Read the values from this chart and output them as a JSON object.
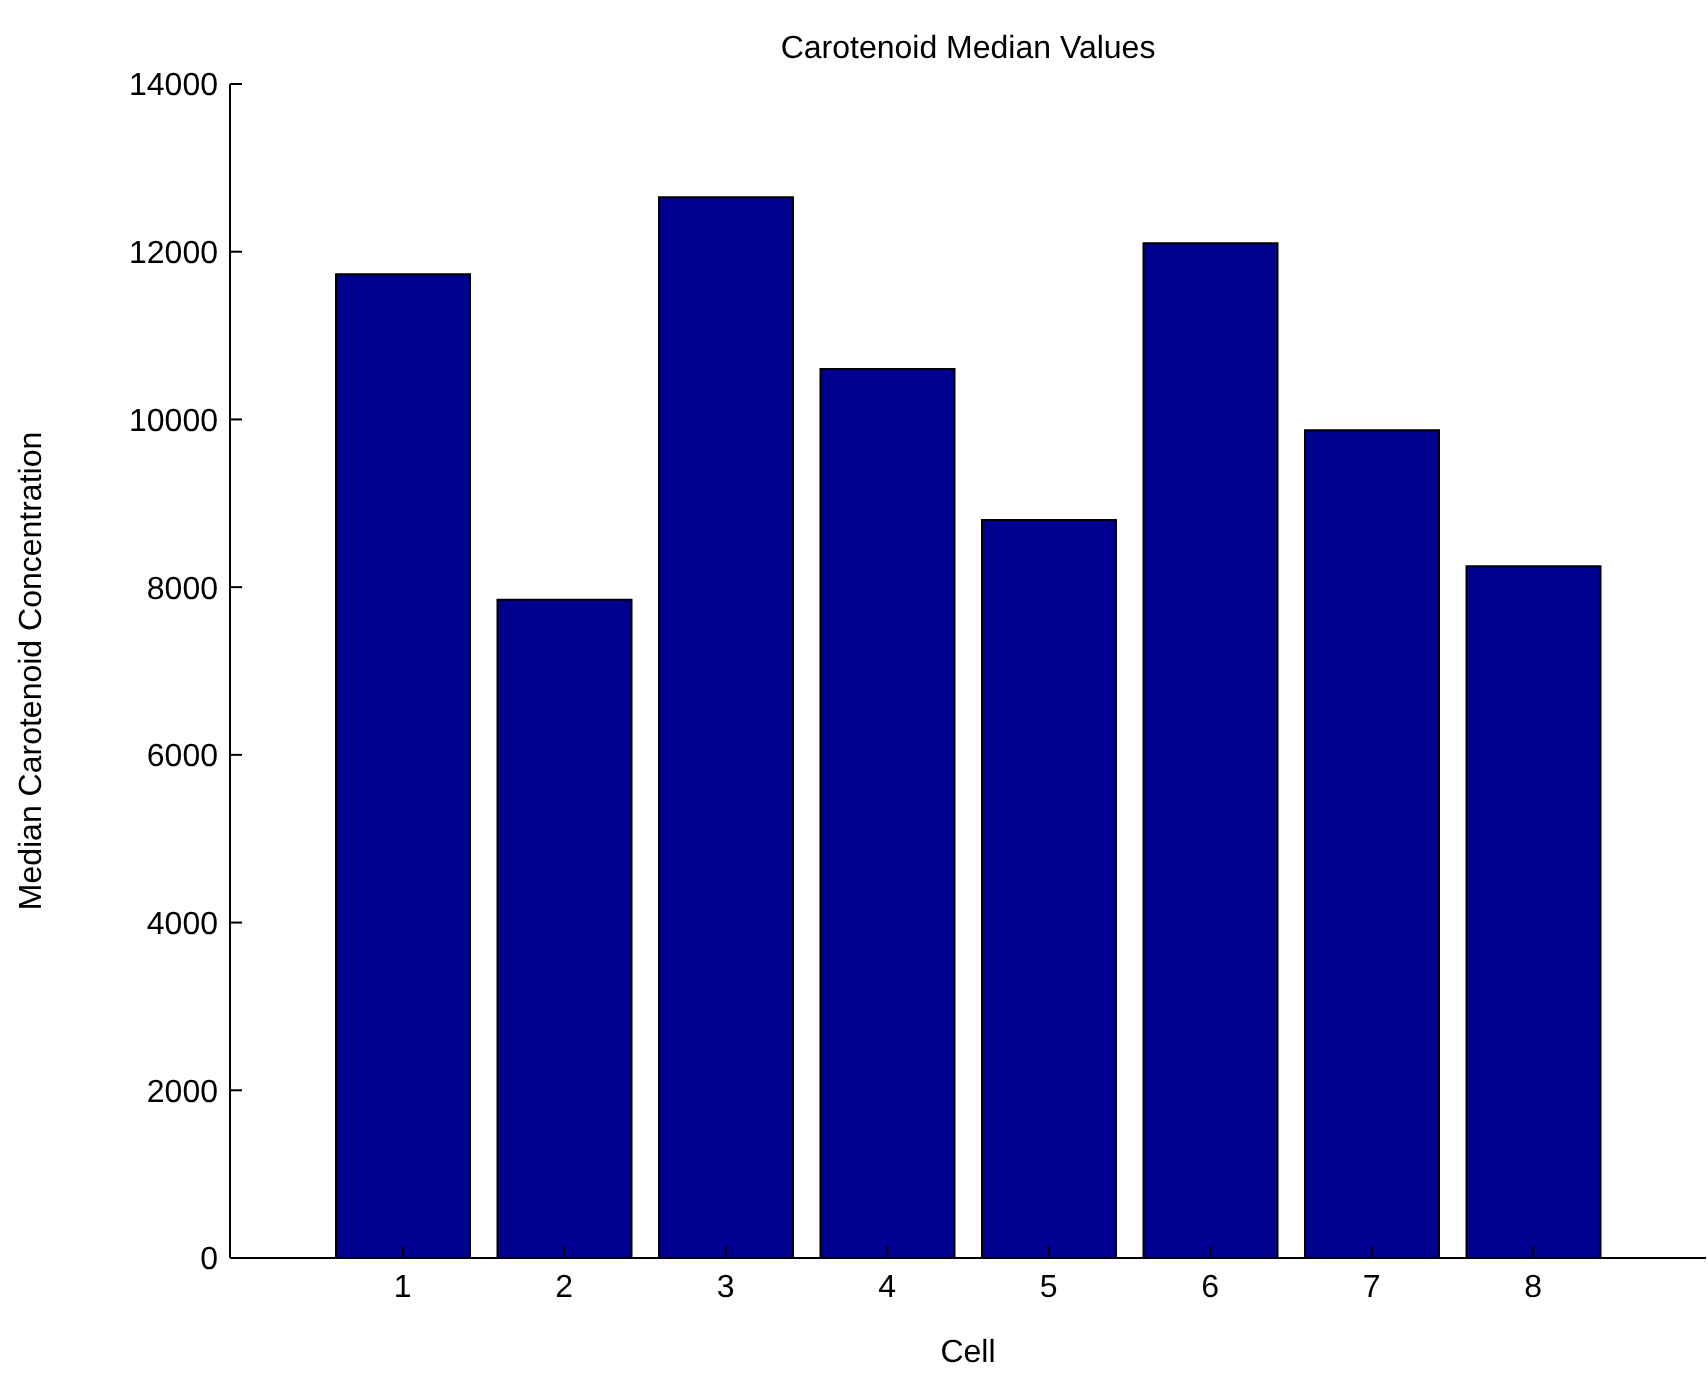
{
  "chart_data": {
    "type": "bar",
    "title": "Carotenoid Median Values",
    "xlabel": "Cell",
    "ylabel": "Median Carotenoid Concentration",
    "categories": [
      "1",
      "2",
      "3",
      "4",
      "5",
      "6",
      "7",
      "8"
    ],
    "values": [
      11730,
      7850,
      12650,
      10600,
      8800,
      12100,
      9870,
      8250
    ],
    "color": "#000090",
    "ylim": [
      0,
      14000
    ],
    "yticks": [
      0,
      2000,
      4000,
      6000,
      8000,
      10000,
      12000,
      14000
    ],
    "grid": false
  }
}
